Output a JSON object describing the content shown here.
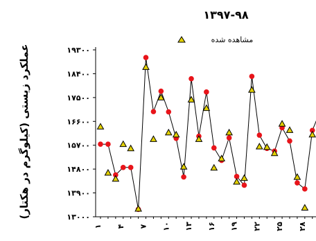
{
  "chart_data": {
    "type": "line",
    "title": "۱۳۹۷-۹۸",
    "ylabel": "عملکرد زیستی (کیلوگرم در هکتار)",
    "xlabel": "",
    "ylim": [
      13000,
      19300
    ],
    "y_ticks": [
      "۱۳۰۰۰",
      "۱۳۹۰۰",
      "۱۴۸۰۰",
      "۱۵۷۰۰",
      "۱۶۶۰۰",
      "۱۷۵۰۰",
      "۱۸۴۰۰",
      "۱۹۳۰۰"
    ],
    "y_tick_values": [
      13000,
      13900,
      14800,
      15700,
      16600,
      17500,
      18400,
      19300
    ],
    "x_tick_labels": [
      "۱",
      "۴",
      "۷",
      "۱۰",
      "۱۳",
      "۱۶",
      "۱۹",
      "۲۲",
      "۲۵",
      "۲۸"
    ],
    "x_tick_positions": [
      1,
      4,
      7,
      10,
      13,
      16,
      19,
      22,
      25,
      28
    ],
    "x": [
      1,
      2,
      3,
      4,
      5,
      6,
      7,
      8,
      9,
      10,
      11,
      12,
      13,
      14,
      15,
      16,
      17,
      18,
      19,
      20,
      21,
      22,
      23,
      24,
      25,
      26,
      27,
      28,
      29,
      30
    ],
    "series": [
      {
        "name": "",
        "marker": "circle",
        "color": "#e8141a",
        "line": true,
        "values": [
          15740,
          15740,
          14580,
          14860,
          14860,
          13280,
          19010,
          16970,
          17740,
          16960,
          15960,
          14500,
          18210,
          16040,
          17710,
          15600,
          15130,
          15980,
          14520,
          14190,
          18300,
          16080,
          15580,
          15480,
          16360,
          15860,
          14280,
          14050,
          16260,
          16970
        ]
      },
      {
        "name": "مشاهده شده",
        "marker": "triangle",
        "color": "#e4d200",
        "line": false,
        "values": [
          16400,
          14660,
          14430,
          15740,
          15580,
          13300,
          18650,
          15930,
          17500,
          16180,
          16100,
          14890,
          17420,
          15930,
          17100,
          14850,
          15200,
          16180,
          14320,
          14460,
          17790,
          15650,
          15630,
          15400,
          16510,
          16270,
          14500,
          13340,
          16100,
          17310
        ]
      }
    ],
    "legend_position": "top-center",
    "grid": false
  }
}
